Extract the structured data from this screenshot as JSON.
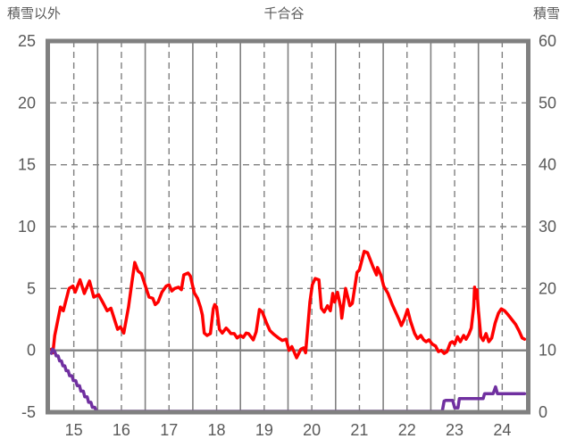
{
  "chart_data": {
    "type": "line",
    "title": "千合谷",
    "left_axis": {
      "label": "積雪以外",
      "min": -5,
      "max": 25,
      "ticks": [
        25,
        20,
        15,
        10,
        5,
        0,
        -5
      ],
      "dashed_gridlines": [
        20,
        15,
        10,
        5
      ],
      "zero_line": 0
    },
    "right_axis": {
      "label": "積雪",
      "min": 0,
      "max": 60,
      "ticks": [
        60,
        50,
        40,
        30,
        20,
        10,
        0
      ]
    },
    "x_axis": {
      "min": 15,
      "max": 25,
      "day_labels": [
        "15",
        "16",
        "17",
        "18",
        "19",
        "20",
        "21",
        "22",
        "23",
        "24"
      ],
      "label_positions": [
        15.5,
        16.5,
        17.5,
        18.5,
        19.5,
        20.5,
        21.5,
        22.5,
        23.5,
        24.5
      ],
      "solid_gridlines": [
        16,
        17,
        18,
        19,
        20,
        21,
        22,
        23,
        24
      ],
      "dashed_gridlines": [
        15.5,
        16.5,
        17.5,
        18.5,
        19.5,
        20.5,
        21.5,
        22.5,
        23.5,
        24.5
      ]
    },
    "style": {
      "border_color": "#808080",
      "grid_color": "#808080",
      "zero_line_color": "#808080",
      "text_color": "#595959",
      "background": "#FFFFFF",
      "red": "#FF0000",
      "purple": "#7030A0"
    },
    "series": [
      {
        "name": "積雪以外",
        "axis": "left",
        "color": "#FF0000",
        "width": 3.5,
        "points": [
          [
            15.03,
            0.1
          ],
          [
            15.06,
            -0.2
          ],
          [
            15.1,
            1.2
          ],
          [
            15.22,
            3.5
          ],
          [
            15.28,
            3.2
          ],
          [
            15.4,
            5.0
          ],
          [
            15.48,
            5.2
          ],
          [
            15.53,
            4.7
          ],
          [
            15.63,
            5.7
          ],
          [
            15.72,
            4.6
          ],
          [
            15.83,
            5.6
          ],
          [
            15.92,
            4.3
          ],
          [
            16.02,
            4.5
          ],
          [
            16.12,
            3.8
          ],
          [
            16.2,
            3.2
          ],
          [
            16.28,
            3.4
          ],
          [
            16.42,
            1.7
          ],
          [
            16.48,
            1.9
          ],
          [
            16.55,
            1.4
          ],
          [
            16.65,
            3.5
          ],
          [
            16.72,
            5.5
          ],
          [
            16.78,
            7.1
          ],
          [
            16.85,
            6.4
          ],
          [
            16.92,
            6.2
          ],
          [
            17.02,
            5.0
          ],
          [
            17.08,
            4.3
          ],
          [
            17.16,
            4.2
          ],
          [
            17.21,
            3.7
          ],
          [
            17.27,
            3.9
          ],
          [
            17.35,
            4.7
          ],
          [
            17.44,
            5.2
          ],
          [
            17.5,
            5.3
          ],
          [
            17.56,
            4.8
          ],
          [
            17.62,
            5.0
          ],
          [
            17.7,
            5.1
          ],
          [
            17.76,
            4.9
          ],
          [
            17.81,
            6.1
          ],
          [
            17.9,
            6.25
          ],
          [
            17.95,
            6.0
          ],
          [
            18.03,
            4.65
          ],
          [
            18.1,
            4.2
          ],
          [
            18.16,
            3.5
          ],
          [
            18.2,
            2.85
          ],
          [
            18.24,
            1.4
          ],
          [
            18.3,
            1.2
          ],
          [
            18.37,
            1.35
          ],
          [
            18.43,
            3.35
          ],
          [
            18.46,
            3.7
          ],
          [
            18.5,
            3.5
          ],
          [
            18.56,
            1.7
          ],
          [
            18.62,
            1.4
          ],
          [
            18.7,
            1.8
          ],
          [
            18.75,
            1.6
          ],
          [
            18.8,
            1.35
          ],
          [
            18.87,
            1.35
          ],
          [
            18.93,
            1.0
          ],
          [
            19.0,
            1.2
          ],
          [
            19.06,
            1.05
          ],
          [
            19.12,
            1.4
          ],
          [
            19.17,
            1.35
          ],
          [
            19.27,
            0.85
          ],
          [
            19.33,
            1.5
          ],
          [
            19.4,
            3.3
          ],
          [
            19.46,
            3.1
          ],
          [
            19.55,
            2.2
          ],
          [
            19.62,
            1.6
          ],
          [
            19.7,
            1.3
          ],
          [
            19.8,
            1.0
          ],
          [
            19.88,
            0.8
          ],
          [
            19.96,
            0.9
          ],
          [
            20.02,
            0.0
          ],
          [
            20.08,
            0.3
          ],
          [
            20.18,
            -0.6
          ],
          [
            20.27,
            0.1
          ],
          [
            20.33,
            0.2
          ],
          [
            20.37,
            -0.2
          ],
          [
            20.46,
            3.9
          ],
          [
            20.51,
            5.3
          ],
          [
            20.57,
            5.8
          ],
          [
            20.65,
            5.7
          ],
          [
            20.7,
            3.4
          ],
          [
            20.76,
            3.1
          ],
          [
            20.83,
            3.6
          ],
          [
            20.89,
            3.2
          ],
          [
            20.94,
            4.6
          ],
          [
            20.98,
            3.9
          ],
          [
            21.04,
            4.7
          ],
          [
            21.11,
            3.4
          ],
          [
            21.13,
            2.6
          ],
          [
            21.21,
            5.0
          ],
          [
            21.3,
            3.6
          ],
          [
            21.35,
            3.8
          ],
          [
            21.45,
            6.3
          ],
          [
            21.5,
            6.5
          ],
          [
            21.6,
            8.0
          ],
          [
            21.67,
            7.9
          ],
          [
            21.73,
            7.3
          ],
          [
            21.78,
            6.8
          ],
          [
            21.86,
            6.1
          ],
          [
            21.88,
            6.7
          ],
          [
            21.95,
            6.1
          ],
          [
            22.01,
            5.2
          ],
          [
            22.1,
            4.6
          ],
          [
            22.19,
            3.7
          ],
          [
            22.33,
            2.5
          ],
          [
            22.38,
            2.0
          ],
          [
            22.44,
            2.5
          ],
          [
            22.51,
            3.3
          ],
          [
            22.57,
            2.4
          ],
          [
            22.66,
            1.35
          ],
          [
            22.72,
            0.95
          ],
          [
            22.79,
            1.2
          ],
          [
            22.85,
            0.85
          ],
          [
            22.9,
            0.7
          ],
          [
            22.96,
            0.85
          ],
          [
            23.03,
            0.5
          ],
          [
            23.1,
            0.35
          ],
          [
            23.16,
            -0.1
          ],
          [
            23.22,
            0.0
          ],
          [
            23.28,
            -0.25
          ],
          [
            23.34,
            -0.1
          ],
          [
            23.41,
            0.6
          ],
          [
            23.45,
            0.7
          ],
          [
            23.5,
            0.5
          ],
          [
            23.56,
            1.1
          ],
          [
            23.62,
            0.7
          ],
          [
            23.69,
            1.2
          ],
          [
            23.74,
            0.9
          ],
          [
            23.8,
            1.3
          ],
          [
            23.85,
            1.8
          ],
          [
            23.9,
            3.5
          ],
          [
            23.92,
            5.1
          ],
          [
            23.94,
            4.2
          ],
          [
            23.97,
            4.9
          ],
          [
            24.0,
            3.2
          ],
          [
            24.05,
            1.1
          ],
          [
            24.1,
            0.8
          ],
          [
            24.16,
            1.35
          ],
          [
            24.22,
            0.7
          ],
          [
            24.28,
            1.0
          ],
          [
            24.35,
            2.2
          ],
          [
            24.42,
            3.0
          ],
          [
            24.48,
            3.35
          ],
          [
            24.55,
            3.2
          ],
          [
            24.62,
            2.9
          ],
          [
            24.7,
            2.5
          ],
          [
            24.78,
            2.1
          ],
          [
            24.85,
            1.6
          ],
          [
            24.92,
            1.0
          ],
          [
            24.97,
            0.9
          ]
        ]
      },
      {
        "name": "積雪",
        "axis": "right",
        "color": "#7030A0",
        "width": 3.5,
        "points": [
          [
            15.03,
            9.5
          ],
          [
            15.05,
            10.2
          ],
          [
            15.08,
            10.0
          ],
          [
            15.1,
            9.8
          ],
          [
            15.13,
            9.1
          ],
          [
            15.17,
            9.1
          ],
          [
            15.2,
            8.3
          ],
          [
            15.24,
            8.3
          ],
          [
            15.27,
            7.5
          ],
          [
            15.31,
            7.5
          ],
          [
            15.34,
            6.7
          ],
          [
            15.38,
            6.7
          ],
          [
            15.41,
            5.9
          ],
          [
            15.46,
            5.9
          ],
          [
            15.49,
            5.1
          ],
          [
            15.54,
            5.1
          ],
          [
            15.57,
            4.3
          ],
          [
            15.62,
            4.3
          ],
          [
            15.65,
            3.4
          ],
          [
            15.7,
            3.4
          ],
          [
            15.73,
            2.5
          ],
          [
            15.78,
            2.5
          ],
          [
            15.81,
            1.6
          ],
          [
            15.86,
            1.6
          ],
          [
            15.89,
            0.8
          ],
          [
            15.94,
            0.8
          ],
          [
            15.97,
            0.2
          ],
          [
            16.0,
            0.15
          ],
          [
            23.24,
            0.15
          ],
          [
            23.28,
            1.8
          ],
          [
            23.31,
            1.9
          ],
          [
            23.46,
            1.9
          ],
          [
            23.5,
            0.7
          ],
          [
            23.57,
            0.7
          ],
          [
            23.6,
            2.2
          ],
          [
            24.1,
            2.2
          ],
          [
            24.13,
            3.0
          ],
          [
            24.31,
            3.0
          ],
          [
            24.36,
            4.1
          ],
          [
            24.4,
            3.0
          ],
          [
            24.97,
            3.0
          ]
        ]
      }
    ]
  }
}
